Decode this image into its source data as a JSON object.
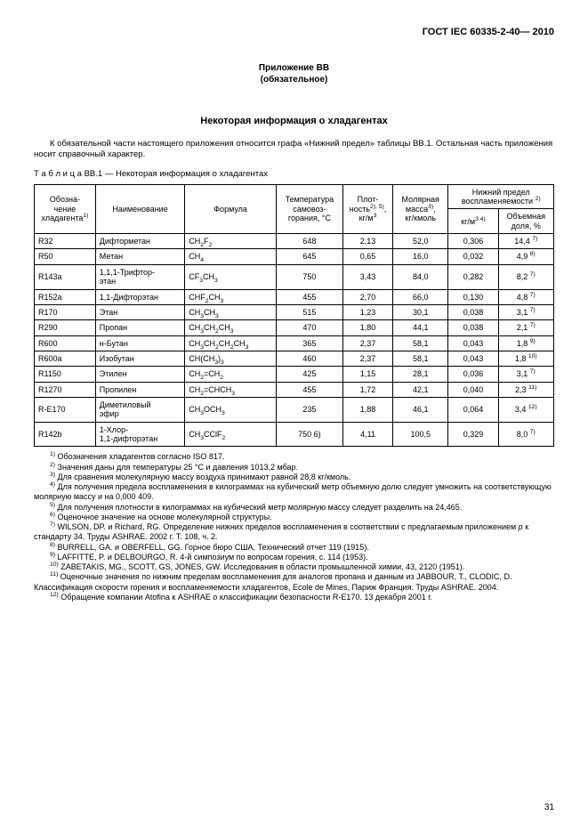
{
  "docCode": "ГОСТ IEC 60335-2-40— 2010",
  "appendix": {
    "line1": "Приложение ВВ",
    "line2": "(обязательное)"
  },
  "sectionTitle": "Некоторая информация о хладагентах",
  "introText": "К обязательной части настоящего приложения относится графа «Нижний предел» таблицы ВВ.1. Остальная часть приложения носит справочный характер.",
  "tableCaption": "Т а б л и ц а  ВВ.1 — Некоторая информация о хладагентах",
  "headers": {
    "col1": "Обозна-\nчение\nхладагента",
    "col2": "Наименование",
    "col3": "Формула",
    "col4": "Температура\nсамовоз-\nгорания, °С",
    "col5": "Плот-\nность",
    "col5unit": "кг/м",
    "col6": "Молярная\nмасса",
    "col6unit": "кг/кмоль",
    "col7": "Нижний предел\nвоспламеняемости",
    "col7a": "кг/м",
    "col7b": "Объемная\nдоля, %"
  },
  "rows": [
    {
      "code": "R32",
      "name": "Дифторметан",
      "formula": "CH<sub>2</sub>F<sub>2</sub>",
      "temp": "648",
      "dens": "2,13",
      "mass": "52,0",
      "kgm": "0,306",
      "vol": "14,4 <sup>7)</sup>"
    },
    {
      "code": "R50",
      "name": "Метан",
      "formula": "CH<sub>4</sub>",
      "temp": "645",
      "dens": "0,65",
      "mass": "16,0",
      "kgm": "0,032",
      "vol": "4,9 <sup>8)</sup>"
    },
    {
      "code": "R143a",
      "name": "1,1,1-Трифтор-\nэтан",
      "formula": "CF<sub>3</sub>CH<sub>3</sub>",
      "temp": "750",
      "dens": "3,43",
      "mass": "84,0",
      "kgm": "0,282",
      "vol": "8,2 <sup>7)</sup>"
    },
    {
      "code": "R152a",
      "name": "1,1-Дифторэтан",
      "formula": "CHF<sub>2</sub>CH<sub>3</sub>",
      "temp": "455",
      "dens": "2,70",
      "mass": "66,0",
      "kgm": "0,130",
      "vol": "4,8 <sup>7)</sup>"
    },
    {
      "code": "R170",
      "name": "Этан",
      "formula": "CH<sub>3</sub>CH<sub>3</sub>",
      "temp": "515",
      "dens": "1,23",
      "mass": "30,1",
      "kgm": "0,038",
      "vol": "3,1 <sup>7)</sup>"
    },
    {
      "code": "R290",
      "name": "Пропан",
      "formula": "CH<sub>3</sub>CH<sub>2</sub>CH<sub>3</sub>",
      "temp": "470",
      "dens": "1,80",
      "mass": "44,1",
      "kgm": "0,038",
      "vol": "2,1 <sup>7)</sup>"
    },
    {
      "code": "R600",
      "name": "н-Бутан",
      "formula": "CH<sub>3</sub>CH<sub>2</sub>CH<sub>2</sub>CH<sub>3</sub>",
      "temp": "365",
      "dens": "2,37",
      "mass": "58,1",
      "kgm": "0,043",
      "vol": "1,8 <sup>9)</sup>"
    },
    {
      "code": "R600a",
      "name": "Изобутан",
      "formula": "CH(CH<sub>3</sub>)<sub>3</sub>",
      "temp": "460",
      "dens": "2,37",
      "mass": "58,1",
      "kgm": "0,043",
      "vol": "1,8 <sup>10)</sup>"
    },
    {
      "code": "R1150",
      "name": "Этилен",
      "formula": "CH<sub>2</sub>=CH<sub>2</sub>",
      "temp": "425",
      "dens": "1,15",
      "mass": "28,1",
      "kgm": "0,036",
      "vol": "3,1 <sup>7)</sup>"
    },
    {
      "code": "R1270",
      "name": "Пропилен",
      "formula": "CH<sub>2</sub>=CHCH<sub>3</sub>",
      "temp": "455",
      "dens": "1,72",
      "mass": "42,1",
      "kgm": "0,040",
      "vol": "2,3 <sup>11)</sup>"
    },
    {
      "code": "R-E170",
      "name": "Диметиловый\nэфир",
      "formula": "CH<sub>3</sub>OCH<sub>3</sub>",
      "temp": "235",
      "dens": "1,88",
      "mass": "46,1",
      "kgm": "0,064",
      "vol": "3,4 <sup>12)</sup>"
    },
    {
      "code": "R142b",
      "name": "1-Хлор-\n1,1-дифторэтан",
      "formula": "CH<sub>3</sub>CClF<sub>2</sub>",
      "temp": "750 6)",
      "dens": "4,11",
      "mass": "100,5",
      "kgm": "0,329",
      "vol": "8,0 <sup>7)</sup>"
    }
  ],
  "notes": [
    "<sup>1)</sup> Обозначения хладагентов согласно ISO 817.",
    "<sup>2)</sup> Значения даны для температуры 25 °С и давления 1013,2 мбар.",
    "<sup>3)</sup> Для сравнения молекулярную массу воздуха принимают равной 28,8 кг/кмоль.",
    "<sup>4)</sup> Для получения предела воспламенения в килограммах на кубический метр объемную долю следует умножить на соответствующую молярную массу и на 0,000 409.",
    "<sup>5)</sup> Для получения плотности в килограммах на кубический метр молярную массу следует разделить на 24,465.",
    "<sup>6)</sup> Оценочное значение на основе молекулярной структуры.",
    "<sup>7)</sup> WILSON, DP. и Richard, RG. Определение нижних пределов воспламенения в соответствии с предлагаемым приложением <i>р</i> к стандарту 34. Труды ASHRAE. 2002 г. Т. 108, ч. 2.",
    "<sup>8)</sup> BURRELL, GA. и OBERFELL, GG. Горное бюро США, Технический отчет 119 (1915).",
    "<sup>9)</sup> LAFFITTE, P. и DELBOURGO, R. 4-й симпозиум по вопросам горения, с. 114 (1953).",
    "<sup>10)</sup> ZABETAKIS, MG., SCOTT, GS, JONES, GW. Исследования в области промышленной химии, 43, 2120 (1951).",
    "<sup>11)</sup> Оценочные значения по нижним пределам воспламенения для аналогов пропана и данным из JABBOUR, T., CLODIC, D. Классификация скорости горения и воспламеняемости хладагентов, Ecole de Mines, Париж Франция. Труды ASHRAE. 2004.",
    "<sup>12)</sup> Обращение компании Atofina к ASHRAE о классификации безопасности R-E170. 13 декабря 2001 г."
  ],
  "pageNum": "31"
}
